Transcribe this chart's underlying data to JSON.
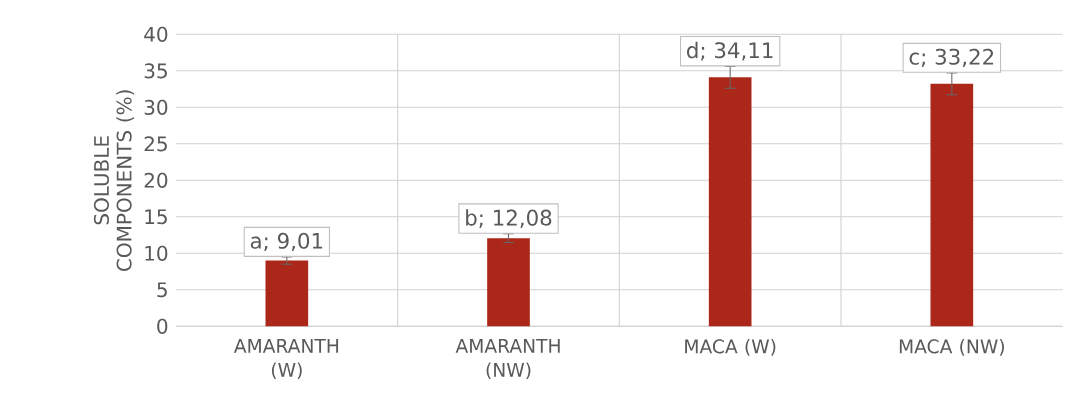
{
  "chart_data": {
    "type": "bar",
    "ylabel": "SOLUBLE COMPONENTS (%)",
    "categories": [
      "AMARANTH (W)",
      "AMARANTH (NW)",
      "MACA (W)",
      "MACA (NW)"
    ],
    "values": [
      9.01,
      12.08,
      34.11,
      33.22
    ],
    "errors": [
      0.5,
      0.6,
      1.5,
      1.5
    ],
    "value_labels": [
      "a; 9,01",
      "b; 12,08",
      "d; 34,11",
      "c; 33,22"
    ],
    "color": "#ab2719",
    "ylim": [
      0,
      40
    ],
    "yticks": [
      0,
      5,
      10,
      15,
      20,
      25,
      30,
      35,
      40
    ],
    "grid": true
  }
}
